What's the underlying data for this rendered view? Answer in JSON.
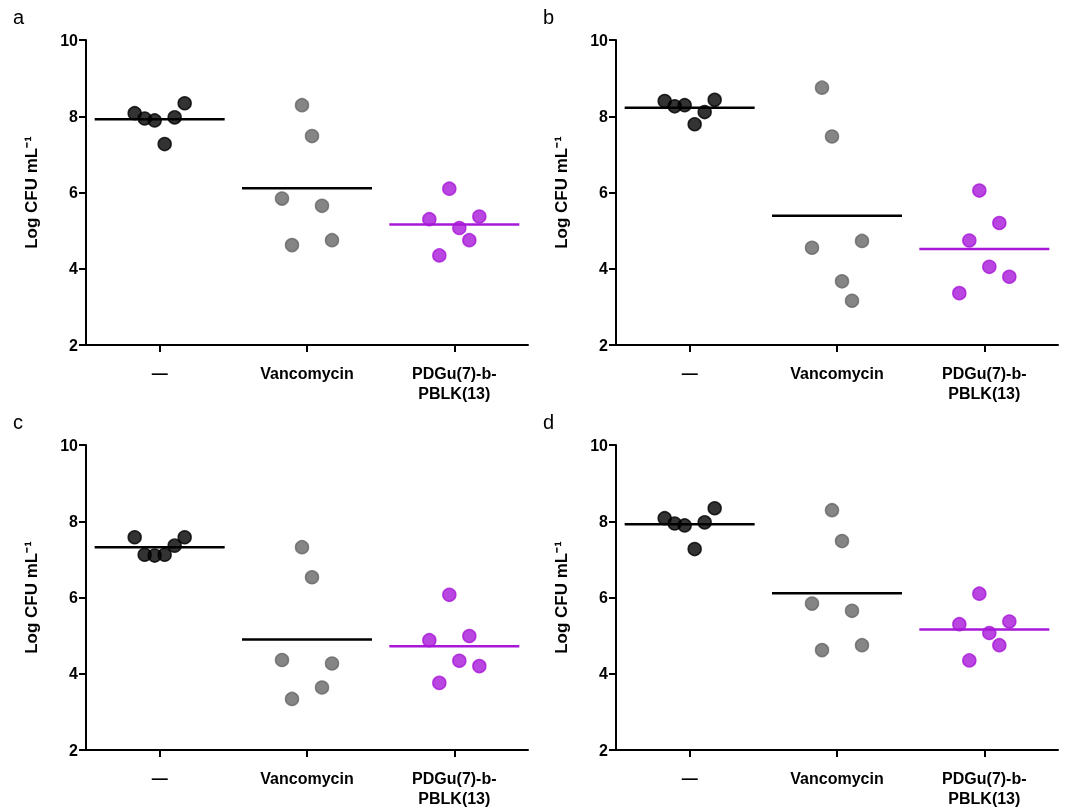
{
  "chart_data": [
    {
      "type": "scatter",
      "title": "a",
      "ylabel": "Log CFU mL⁻¹",
      "categories": [
        "—",
        "Vancomycin",
        "PDGu(7)-b-PBLK(13)"
      ],
      "ylim": [
        2,
        10
      ],
      "yticks": [
        2,
        4,
        6,
        8,
        10
      ],
      "grid": false,
      "marker": "circle",
      "series": [
        {
          "color": "#000000",
          "x": [
            "—",
            "—",
            "—",
            "—",
            "—",
            "—"
          ],
          "values": [
            8.08,
            7.94,
            7.89,
            7.27,
            7.97,
            8.34
          ]
        },
        {
          "color": "#666666",
          "x": [
            "Vancomycin",
            "Vancomycin",
            "Vancomycin",
            "Vancomycin",
            "Vancomycin",
            "Vancomycin"
          ],
          "values": [
            5.84,
            4.62,
            8.29,
            7.48,
            5.65,
            4.75
          ]
        },
        {
          "color": "#a818d8",
          "x": [
            "PDGu(7)-b-PBLK(13)",
            "PDGu(7)-b-PBLK(13)",
            "PDGu(7)-b-PBLK(13)",
            "PDGu(7)-b-PBLK(13)",
            "PDGu(7)-b-PBLK(13)",
            "PDGu(7)-b-PBLK(13)"
          ],
          "values": [
            5.3,
            4.35,
            6.1,
            5.07,
            4.75,
            5.37
          ]
        },
        {
          "type": "box",
          "colors": [
            "#000000",
            "#000000",
            "#a818d8"
          ],
          "boxes": [
            {
              "low": 7.92,
              "q1": 7.92,
              "median": 7.92,
              "q3": 7.92,
              "high": 7.92
            },
            {
              "low": 6.11,
              "q1": 6.11,
              "median": 6.11,
              "q3": 6.11,
              "high": 6.11
            },
            {
              "low": 5.16,
              "q1": 5.16,
              "median": 5.16,
              "q3": 5.16,
              "high": 5.16
            }
          ]
        }
      ]
    },
    {
      "type": "scatter",
      "title": "b",
      "ylabel": "Log CFU mL⁻¹",
      "categories": [
        "—",
        "Vancomycin",
        "PDGu(7)-b-PBLK(13)"
      ],
      "ylim": [
        2,
        10
      ],
      "yticks": [
        2,
        4,
        6,
        8,
        10
      ],
      "grid": false,
      "marker": "circle",
      "series": [
        {
          "color": "#000000",
          "x": [
            "—",
            "—",
            "—",
            "—",
            "—",
            "—"
          ],
          "values": [
            8.4,
            8.26,
            8.29,
            7.79,
            8.11,
            8.43
          ]
        },
        {
          "color": "#666666",
          "x": [
            "Vancomycin",
            "Vancomycin",
            "Vancomycin",
            "Vancomycin",
            "Vancomycin",
            "Vancomycin"
          ],
          "values": [
            4.55,
            8.75,
            7.47,
            3.67,
            3.16,
            4.73
          ]
        },
        {
          "color": "#a818d8",
          "x": [
            "PDGu(7)-b-PBLK(13)",
            "PDGu(7)-b-PBLK(13)",
            "PDGu(7)-b-PBLK(13)",
            "PDGu(7)-b-PBLK(13)",
            "PDGu(7)-b-PBLK(13)",
            "PDGu(7)-b-PBLK(13)"
          ],
          "values": [
            3.36,
            4.74,
            6.05,
            4.05,
            5.2,
            3.79
          ]
        },
        {
          "type": "box",
          "colors": [
            "#000000",
            "#000000",
            "#a818d8"
          ],
          "boxes": [
            {
              "low": 8.22,
              "q1": 8.22,
              "median": 8.22,
              "q3": 8.22,
              "high": 8.22
            },
            {
              "low": 5.39,
              "q1": 5.39,
              "median": 5.39,
              "q3": 5.39,
              "high": 5.39
            },
            {
              "low": 4.52,
              "q1": 4.52,
              "median": 4.52,
              "q3": 4.52,
              "high": 4.52
            }
          ]
        }
      ]
    },
    {
      "type": "scatter",
      "title": "c",
      "ylabel": "Log CFU mL⁻¹",
      "categories": [
        "—",
        "Vancomycin",
        "PDGu(7)-b-PBLK(13)"
      ],
      "ylim": [
        2,
        10
      ],
      "yticks": [
        2,
        4,
        6,
        8,
        10
      ],
      "grid": false,
      "marker": "circle",
      "series": [
        {
          "color": "#000000",
          "x": [
            "—",
            "—",
            "—",
            "—",
            "—",
            "—"
          ],
          "values": [
            7.58,
            7.12,
            7.1,
            7.12,
            7.36,
            7.58
          ]
        },
        {
          "color": "#666666",
          "x": [
            "Vancomycin",
            "Vancomycin",
            "Vancomycin",
            "Vancomycin",
            "Vancomycin",
            "Vancomycin"
          ],
          "values": [
            4.36,
            3.34,
            7.32,
            6.53,
            3.64,
            4.27
          ]
        },
        {
          "color": "#a818d8",
          "x": [
            "PDGu(7)-b-PBLK(13)",
            "PDGu(7)-b-PBLK(13)",
            "PDGu(7)-b-PBLK(13)",
            "PDGu(7)-b-PBLK(13)",
            "PDGu(7)-b-PBLK(13)",
            "PDGu(7)-b-PBLK(13)"
          ],
          "values": [
            4.88,
            3.76,
            6.07,
            4.34,
            4.99,
            4.2
          ]
        },
        {
          "type": "box",
          "colors": [
            "#000000",
            "#000000",
            "#a818d8"
          ],
          "boxes": [
            {
              "low": 7.32,
              "q1": 7.32,
              "median": 7.32,
              "q3": 7.32,
              "high": 7.32
            },
            {
              "low": 4.9,
              "q1": 4.9,
              "median": 4.9,
              "q3": 4.9,
              "high": 4.9
            },
            {
              "low": 4.72,
              "q1": 4.72,
              "median": 4.72,
              "q3": 4.72,
              "high": 4.72
            }
          ]
        }
      ]
    },
    {
      "type": "scatter",
      "title": "d",
      "ylabel": "Log CFU mL⁻¹",
      "categories": [
        "—",
        "Vancomycin",
        "PDGu(7)-b-PBLK(13)"
      ],
      "ylim": [
        2,
        10
      ],
      "yticks": [
        2,
        4,
        6,
        8,
        10
      ],
      "grid": false,
      "marker": "circle",
      "series": [
        {
          "color": "#000000",
          "x": [
            "—",
            "—",
            "—",
            "—",
            "—",
            "—"
          ],
          "values": [
            8.08,
            7.94,
            7.89,
            7.27,
            7.97,
            8.34
          ]
        },
        {
          "color": "#666666",
          "x": [
            "Vancomycin",
            "Vancomycin",
            "Vancomycin",
            "Vancomycin",
            "Vancomycin",
            "Vancomycin"
          ],
          "values": [
            5.84,
            4.62,
            8.29,
            7.48,
            5.65,
            4.75
          ]
        },
        {
          "color": "#a818d8",
          "x": [
            "PDGu(7)-b-PBLK(13)",
            "PDGu(7)-b-PBLK(13)",
            "PDGu(7)-b-PBLK(13)",
            "PDGu(7)-b-PBLK(13)",
            "PDGu(7)-b-PBLK(13)",
            "PDGu(7)-b-PBLK(13)"
          ],
          "values": [
            5.3,
            4.35,
            6.1,
            5.07,
            4.75,
            5.37
          ]
        },
        {
          "type": "box",
          "colors": [
            "#000000",
            "#000000",
            "#a818d8"
          ],
          "boxes": [
            {
              "low": 7.92,
              "q1": 7.92,
              "median": 7.92,
              "q3": 7.92,
              "high": 7.92
            },
            {
              "low": 6.11,
              "q1": 6.11,
              "median": 6.11,
              "q3": 6.11,
              "high": 6.11
            },
            {
              "low": 5.16,
              "q1": 5.16,
              "median": 5.16,
              "q3": 5.16,
              "high": 5.16
            }
          ]
        }
      ]
    }
  ]
}
